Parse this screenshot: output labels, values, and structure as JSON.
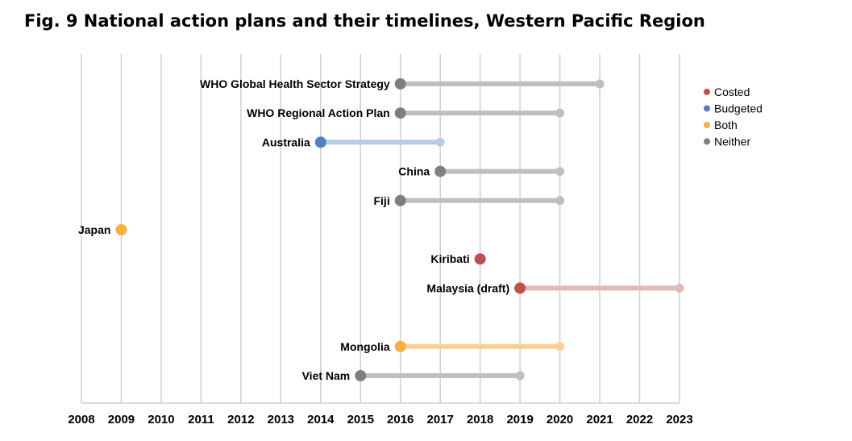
{
  "title": "Fig. 9 National action plans and their timelines, Western Pacific Region",
  "chart_data": {
    "type": "timeline",
    "title": "Fig. 9 National action plans and their timelines, Western Pacific Region",
    "xlim": [
      2008,
      2023
    ],
    "x_ticks": [
      "2008",
      "2009",
      "2010",
      "2011",
      "2012",
      "2013",
      "2014",
      "2015",
      "2016",
      "2017",
      "2018",
      "2019",
      "2020",
      "2021",
      "2022",
      "2023"
    ],
    "grid": "vertical",
    "legend_position": "top-right",
    "legend": [
      {
        "name": "Costed",
        "color": "#c0504d"
      },
      {
        "name": "Budgeted",
        "color": "#4f81bd"
      },
      {
        "name": "Both",
        "color": "#f7b13f"
      },
      {
        "name": "Neither",
        "color": "#7f7f7f"
      }
    ],
    "rows": [
      {
        "label": "WHO Global Health Sector Strategy",
        "start": 2016,
        "end": 2021,
        "category": "Neither"
      },
      {
        "label": "WHO Regional Action Plan",
        "start": 2016,
        "end": 2020,
        "category": "Neither"
      },
      {
        "label": "Australia",
        "start": 2014,
        "end": 2017,
        "category": "Budgeted"
      },
      {
        "label": "China",
        "start": 2017,
        "end": 2020,
        "category": "Neither"
      },
      {
        "label": "Fiji",
        "start": 2016,
        "end": 2020,
        "category": "Neither"
      },
      {
        "label": "Japan",
        "start": 2009,
        "end": null,
        "category": "Both"
      },
      {
        "label": "Kiribati",
        "start": 2018,
        "end": null,
        "category": "Costed"
      },
      {
        "label": "Malaysia (draft)",
        "start": 2019,
        "end": 2023,
        "category": "Costed"
      },
      {
        "label": "",
        "start": null,
        "end": null,
        "category": ""
      },
      {
        "label": "Mongolia",
        "start": 2016,
        "end": 2020,
        "category": "Both"
      },
      {
        "label": "Viet Nam",
        "start": 2015,
        "end": 2019,
        "category": "Neither"
      }
    ],
    "light_colors": {
      "Costed": "#e3b8b8",
      "Budgeted": "#b8cce4",
      "Both": "#f9cf93",
      "Neither": "#bfbfbf"
    }
  }
}
